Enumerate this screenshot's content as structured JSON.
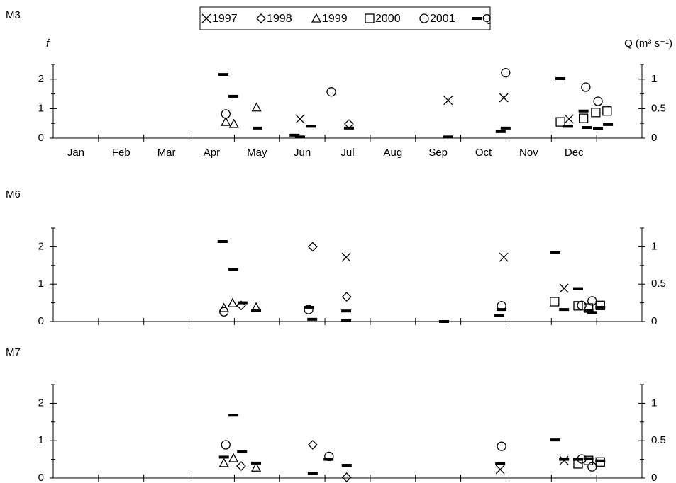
{
  "chart_data": [
    {
      "type": "scatter",
      "title": "M3",
      "ylabel": "f",
      "y2label": "Q (m³ s⁻¹)",
      "categories": [
        "Jan",
        "Feb",
        "Mar",
        "Apr",
        "May",
        "Jun",
        "Jul",
        "Aug",
        "Sep",
        "Oct",
        "Nov",
        "Dec"
      ],
      "xlim": [
        0,
        13
      ],
      "xtick_marks": [
        1,
        2,
        3,
        4,
        5,
        6,
        7,
        8,
        9,
        10,
        11,
        12
      ],
      "ylim": [
        0,
        2.5
      ],
      "yticks": [
        0,
        1,
        2
      ],
      "yminorticks": [
        0.5,
        1.5,
        2.5
      ],
      "y2lim": [
        0,
        1.25
      ],
      "y2ticks": [
        0,
        0.5,
        1
      ],
      "y2minorticks": [
        0.25,
        0.75,
        1.25
      ],
      "series": [
        {
          "name": "1997",
          "marker": "x",
          "color": "#000000",
          "x": [
            5.45,
            8.72,
            9.95,
            11.39
          ],
          "values": [
            0.65,
            1.28,
            1.37,
            0.65
          ]
        },
        {
          "name": "1998",
          "marker": "diamond",
          "color": "#000000",
          "x": [
            6.53
          ],
          "values": [
            0.48
          ]
        },
        {
          "name": "1999",
          "marker": "triangle",
          "color": "#000000",
          "x": [
            3.81,
            3.99,
            4.49
          ],
          "values": [
            0.55,
            0.48,
            1.04
          ]
        },
        {
          "name": "2000",
          "marker": "square",
          "color": "#000000",
          "x": [
            11.2,
            11.71,
            11.98,
            12.23
          ],
          "values": [
            0.55,
            0.67,
            0.87,
            0.92
          ]
        },
        {
          "name": "2001",
          "marker": "circle",
          "color": "#000000",
          "x": [
            3.81,
            6.14,
            9.99,
            11.76,
            12.03
          ],
          "values": [
            0.82,
            1.57,
            2.22,
            1.73,
            1.25
          ]
        },
        {
          "name": "Q",
          "marker": "dash",
          "color": "#000000",
          "axis": "y2",
          "x": [
            3.76,
            3.98,
            4.51,
            5.33,
            5.45,
            5.69,
            6.53,
            8.72,
            9.88,
            9.99,
            11.2,
            11.37,
            11.71,
            11.78,
            12.03,
            12.25
          ],
          "values": [
            1.08,
            0.71,
            0.17,
            0.05,
            0.02,
            0.2,
            0.17,
            0.02,
            0.11,
            0.17,
            1.01,
            0.2,
            0.46,
            0.18,
            0.16,
            0.23
          ]
        }
      ]
    },
    {
      "type": "scatter",
      "title": "M6",
      "xlim": [
        0,
        13
      ],
      "xtick_marks": [
        1,
        2,
        3,
        4,
        5,
        6,
        7,
        8,
        9,
        10,
        11,
        12
      ],
      "ylim": [
        0,
        2.5
      ],
      "yticks": [
        0,
        1,
        2
      ],
      "yminorticks": [
        0.5,
        1.5,
        2.5
      ],
      "y2lim": [
        0,
        1.25
      ],
      "y2ticks": [
        0,
        0.5,
        1
      ],
      "y2minorticks": [
        0.25,
        0.75,
        1.25
      ],
      "series": [
        {
          "marker": "x",
          "color": "#000000",
          "x": [
            6.47,
            9.95,
            11.28
          ],
          "values": [
            1.72,
            1.72,
            0.89
          ]
        },
        {
          "marker": "diamond",
          "color": "#000000",
          "x": [
            4.15,
            5.73,
            6.48
          ],
          "values": [
            0.43,
            2.0,
            0.66
          ]
        },
        {
          "marker": "triangle",
          "color": "#000000",
          "x": [
            3.77,
            3.96,
            4.48
          ],
          "values": [
            0.36,
            0.49,
            0.38
          ]
        },
        {
          "marker": "square",
          "color": "#000000",
          "x": [
            11.07,
            11.59,
            11.82,
            12.08
          ],
          "values": [
            0.53,
            0.42,
            0.36,
            0.43
          ]
        },
        {
          "marker": "circle",
          "color": "#000000",
          "x": [
            3.77,
            5.64,
            9.9,
            11.67,
            11.9
          ],
          "values": [
            0.26,
            0.32,
            0.42,
            0.43,
            0.55
          ]
        },
        {
          "marker": "dash",
          "color": "#000000",
          "axis": "y2",
          "x": [
            3.74,
            3.98,
            4.18,
            4.48,
            5.64,
            5.72,
            6.47,
            6.47,
            8.63,
            9.84,
            9.9,
            11.09,
            11.28,
            11.59,
            11.82,
            11.9,
            12.08
          ],
          "values": [
            1.07,
            0.7,
            0.25,
            0.15,
            0.19,
            0.03,
            0.14,
            0.01,
            0.0,
            0.08,
            0.16,
            0.92,
            0.16,
            0.44,
            0.15,
            0.12,
            0.19
          ]
        }
      ]
    },
    {
      "type": "scatter",
      "title": "M7",
      "xlim": [
        0,
        13
      ],
      "xtick_marks": [
        1,
        2,
        3,
        4,
        5,
        6,
        7,
        8,
        9,
        10,
        11,
        12
      ],
      "ylim": [
        0,
        2.5
      ],
      "yticks": [
        0,
        1,
        2
      ],
      "yminorticks": [
        0.5,
        1.5,
        2.5
      ],
      "y2lim": [
        0,
        1.25
      ],
      "y2ticks": [
        0,
        0.5,
        1
      ],
      "y2minorticks": [
        0.25,
        0.75,
        1.25
      ],
      "series": [
        {
          "marker": "x",
          "color": "#000000",
          "x": [
            9.87,
            11.28
          ],
          "values": [
            0.23,
            0.47
          ]
        },
        {
          "marker": "diamond",
          "color": "#000000",
          "x": [
            4.15,
            5.73,
            6.48
          ],
          "values": [
            0.32,
            0.89,
            0.02
          ]
        },
        {
          "marker": "triangle",
          "color": "#000000",
          "x": [
            3.77,
            3.98,
            4.48
          ],
          "values": [
            0.4,
            0.53,
            0.28
          ]
        },
        {
          "marker": "square",
          "color": "#000000",
          "x": [
            11.59,
            11.82,
            12.08
          ],
          "values": [
            0.38,
            0.47,
            0.43
          ]
        },
        {
          "marker": "circle",
          "color": "#000000",
          "x": [
            3.81,
            6.09,
            9.9,
            11.67,
            11.9
          ],
          "values": [
            0.89,
            0.58,
            0.85,
            0.51,
            0.3
          ]
        },
        {
          "marker": "dash",
          "color": "#000000",
          "axis": "y2",
          "x": [
            3.77,
            3.98,
            4.17,
            4.48,
            5.73,
            6.08,
            6.48,
            9.87,
            11.09,
            11.28,
            11.59,
            11.82,
            12.08
          ],
          "values": [
            0.28,
            0.84,
            0.35,
            0.2,
            0.06,
            0.25,
            0.17,
            0.19,
            0.51,
            0.25,
            0.25,
            0.26,
            0.23
          ]
        }
      ]
    }
  ]
}
